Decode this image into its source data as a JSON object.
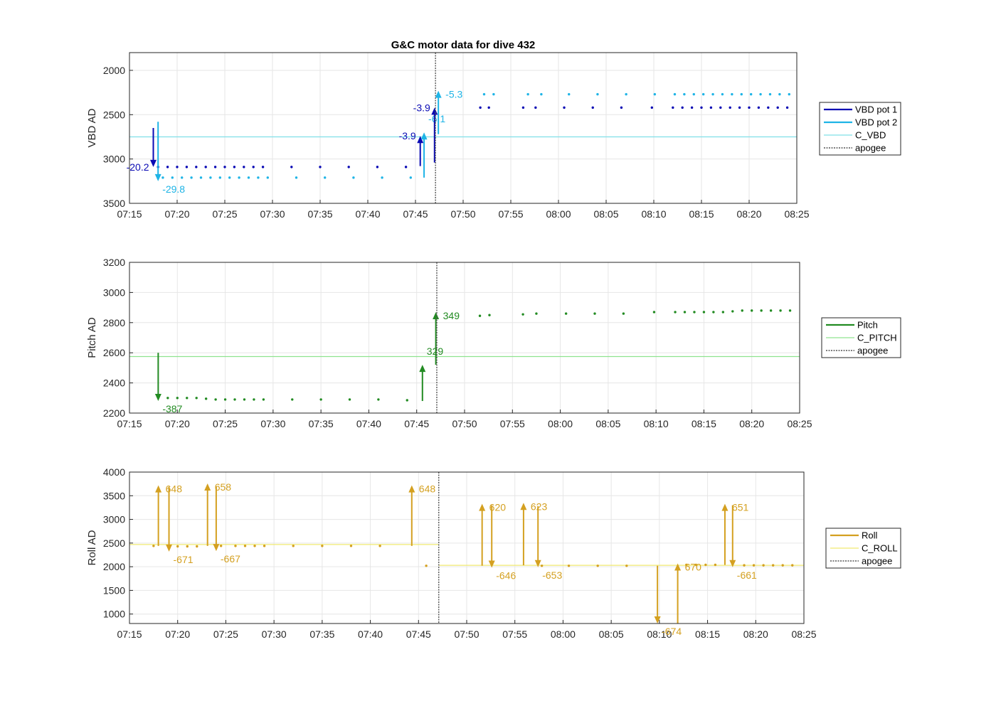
{
  "title": "G&C motor data for dive 432",
  "colors": {
    "vbd1": "#0a0ab4",
    "vbd2": "#1eb4e6",
    "c_vbd": "#7fe0e8",
    "pitch": "#228b22",
    "c_pitch": "#8fe38f",
    "roll": "#d4a020",
    "c_roll": "#f0ea70",
    "apogee": "#555555",
    "grid": "#e6e6e6"
  },
  "chart_data": [
    {
      "type": "scatter",
      "ylabel": "VBD AD",
      "ylim": [
        3500,
        1800
      ],
      "yreverse": true,
      "yticks": [
        2000,
        2500,
        3000,
        3500
      ],
      "xlim_minutes": [
        435,
        505
      ],
      "xticks": [
        "07:15",
        "07:20",
        "07:25",
        "07:30",
        "07:35",
        "07:40",
        "07:45",
        "07:50",
        "07:55",
        "08:00",
        "08:05",
        "08:10",
        "08:15",
        "08:20",
        "08:25"
      ],
      "apogee_minutes": 467.1,
      "hlines": [
        {
          "name": "C_VBD",
          "y": 2750,
          "color": "#7fe0e8"
        }
      ],
      "series": [
        {
          "name": "VBD pot 1",
          "color": "#0a0ab4",
          "x": [
            438,
            439,
            440,
            441,
            442,
            443,
            444,
            445,
            446,
            447,
            448,
            449,
            452,
            455,
            458,
            461,
            464,
            471.8,
            472.7,
            476.3,
            477.6,
            480.6,
            483.6,
            486.6,
            489.8,
            492,
            493,
            494,
            495,
            496,
            497,
            498,
            499,
            500,
            501,
            502,
            503,
            504
          ],
          "y": [
            3090,
            3090,
            3090,
            3090,
            3090,
            3090,
            3090,
            3090,
            3090,
            3090,
            3090,
            3090,
            3090,
            3090,
            3090,
            3090,
            3090,
            2420,
            2420,
            2420,
            2420,
            2420,
            2420,
            2420,
            2420,
            2420,
            2420,
            2420,
            2420,
            2420,
            2420,
            2420,
            2420,
            2420,
            2420,
            2420,
            2420,
            2420
          ]
        },
        {
          "name": "VBD pot 2",
          "color": "#1eb4e6",
          "x": [
            438.5,
            439.5,
            440.5,
            441.5,
            442.5,
            443.5,
            444.5,
            445.5,
            446.5,
            447.5,
            448.5,
            449.5,
            452.5,
            455.5,
            458.5,
            461.5,
            464.5,
            472.2,
            473.2,
            476.8,
            478.2,
            481.1,
            484.1,
            487.1,
            490.1,
            492.2,
            493.2,
            494.2,
            495.2,
            496.2,
            497.2,
            498.2,
            499.2,
            500.2,
            501.2,
            502.2,
            503.2,
            504.2
          ],
          "y": [
            3210,
            3210,
            3210,
            3210,
            3210,
            3210,
            3210,
            3210,
            3210,
            3210,
            3210,
            3210,
            3210,
            3210,
            3210,
            3210,
            3210,
            2270,
            2270,
            2270,
            2270,
            2270,
            2270,
            2270,
            2270,
            2270,
            2270,
            2270,
            2270,
            2270,
            2270,
            2270,
            2270,
            2270,
            2270,
            2270,
            2270,
            2270
          ]
        }
      ],
      "arrows": [
        {
          "x": 437.5,
          "y_from": 2650,
          "y_to": 3090,
          "label": "-20.2",
          "color": "#0a0ab4",
          "label_side": "left"
        },
        {
          "x": 438.0,
          "y_from": 2580,
          "y_to": 3250,
          "label": "-29.8",
          "color": "#1eb4e6",
          "label_side": "below"
        },
        {
          "x": 465.5,
          "y_from": 3080,
          "y_to": 2740,
          "label": "-3.9",
          "color": "#0a0ab4",
          "label_side": "left"
        },
        {
          "x": 465.9,
          "y_from": 3210,
          "y_to": 2700,
          "label": "-6.1",
          "color": "#1eb4e6",
          "label_side": "below"
        },
        {
          "x": 467.0,
          "y_from": 3040,
          "y_to": 2420,
          "label": "-3.9",
          "color": "#0a0ab4",
          "label_side": "left"
        },
        {
          "x": 467.4,
          "y_from": 2720,
          "y_to": 2230,
          "label": "-5.3",
          "color": "#1eb4e6",
          "label_side": "right"
        }
      ],
      "legend": {
        "placement": "right",
        "entries": [
          {
            "label": "VBD pot 1",
            "color": "#0a0ab4",
            "style": "thick"
          },
          {
            "label": "VBD pot 2",
            "color": "#1eb4e6",
            "style": "thick"
          },
          {
            "label": "C_VBD",
            "color": "#7fe0e8",
            "style": "thin"
          },
          {
            "label": "apogee",
            "color": "#555555",
            "style": "dotted"
          }
        ]
      }
    },
    {
      "type": "scatter",
      "ylabel": "Pitch AD",
      "ylim": [
        2200,
        3200
      ],
      "yreverse": false,
      "yticks": [
        2200,
        2400,
        2600,
        2800,
        3000,
        3200
      ],
      "xlim_minutes": [
        435,
        505
      ],
      "xticks": [
        "07:15",
        "07:20",
        "07:25",
        "07:30",
        "07:35",
        "07:40",
        "07:45",
        "07:50",
        "07:55",
        "08:00",
        "08:05",
        "08:10",
        "08:15",
        "08:20",
        "08:25"
      ],
      "apogee_minutes": 467.1,
      "hlines": [
        {
          "name": "C_PITCH",
          "y": 2575,
          "color": "#8fe38f"
        }
      ],
      "series": [
        {
          "name": "Pitch",
          "color": "#228b22",
          "x": [
            439,
            440,
            441,
            442,
            443,
            444,
            445,
            446,
            447,
            448,
            449,
            452,
            455,
            458,
            461,
            464,
            471.6,
            472.6,
            476.1,
            477.5,
            480.6,
            483.6,
            486.6,
            489.8,
            492,
            493,
            494,
            495,
            496,
            497,
            498,
            499,
            500,
            501,
            502,
            503,
            504
          ],
          "y": [
            2300,
            2300,
            2300,
            2300,
            2295,
            2290,
            2290,
            2290,
            2290,
            2290,
            2290,
            2290,
            2290,
            2290,
            2290,
            2285,
            2845,
            2850,
            2855,
            2860,
            2860,
            2860,
            2860,
            2870,
            2870,
            2870,
            2870,
            2870,
            2870,
            2870,
            2875,
            2880,
            2880,
            2880,
            2880,
            2880,
            2880
          ]
        }
      ],
      "arrows": [
        {
          "x": 438.0,
          "y_from": 2600,
          "y_to": 2280,
          "label": "-387",
          "color": "#228b22",
          "label_side": "below"
        },
        {
          "x": 465.6,
          "y_from": 2280,
          "y_to": 2520,
          "label": "329",
          "color": "#228b22",
          "label_side": "below"
        },
        {
          "x": 467.0,
          "y_from": 2520,
          "y_to": 2870,
          "label": "349",
          "color": "#228b22",
          "label_side": "right"
        }
      ],
      "legend": {
        "placement": "right",
        "entries": [
          {
            "label": "Pitch",
            "color": "#228b22",
            "style": "thick"
          },
          {
            "label": "C_PITCH",
            "color": "#8fe38f",
            "style": "thin"
          },
          {
            "label": "apogee",
            "color": "#555555",
            "style": "dotted"
          }
        ]
      }
    },
    {
      "type": "scatter",
      "ylabel": "Roll AD",
      "ylim": [
        800,
        4000
      ],
      "yreverse": false,
      "yticks": [
        1000,
        1500,
        2000,
        2500,
        3000,
        3500,
        4000
      ],
      "xlim_minutes": [
        435,
        505
      ],
      "xticks": [
        "07:15",
        "07:20",
        "07:25",
        "07:30",
        "07:35",
        "07:40",
        "07:45",
        "07:50",
        "07:55",
        "08:00",
        "08:05",
        "08:10",
        "08:15",
        "08:20",
        "08:25"
      ],
      "apogee_minutes": 467.1,
      "hlines": [
        {
          "name": "C_ROLL",
          "y": 2470,
          "color": "#f0ea70",
          "x_end": 467.1
        },
        {
          "name": "C_ROLL",
          "y": 2030,
          "color": "#f0ea70",
          "x_start": 467.1
        }
      ],
      "series": [
        {
          "name": "Roll",
          "color": "#d4a020",
          "x": [
            437.5,
            440,
            441,
            442,
            444.5,
            446,
            447,
            448,
            449,
            452,
            455,
            458,
            461,
            465.8,
            477.8,
            480.6,
            483.6,
            486.6,
            492.8,
            493.8,
            494.8,
            495.8,
            498.8,
            499.8,
            500.8,
            501.8,
            502.8,
            503.8
          ],
          "y": [
            2440,
            2430,
            2430,
            2430,
            2440,
            2440,
            2440,
            2440,
            2440,
            2440,
            2440,
            2440,
            2440,
            2020,
            2020,
            2020,
            2020,
            2020,
            2040,
            2040,
            2040,
            2040,
            2030,
            2030,
            2030,
            2030,
            2030,
            2030
          ]
        }
      ],
      "arrows": [
        {
          "x": 438.0,
          "y_from": 2440,
          "y_to": 3720,
          "label": "648",
          "color": "#d4a020",
          "label_side": "right"
        },
        {
          "x": 439.1,
          "y_from": 3690,
          "y_to": 2320,
          "label": "-671",
          "color": "#d4a020",
          "label_side": "below"
        },
        {
          "x": 443.1,
          "y_from": 2440,
          "y_to": 3760,
          "label": "658",
          "color": "#d4a020",
          "label_side": "right"
        },
        {
          "x": 444.0,
          "y_from": 3700,
          "y_to": 2330,
          "label": "-667",
          "color": "#d4a020",
          "label_side": "below"
        },
        {
          "x": 464.3,
          "y_from": 2440,
          "y_to": 3720,
          "label": "648",
          "color": "#d4a020",
          "label_side": "right"
        },
        {
          "x": 471.6,
          "y_from": 2020,
          "y_to": 3330,
          "label": "620",
          "color": "#d4a020",
          "label_side": "right"
        },
        {
          "x": 472.6,
          "y_from": 3300,
          "y_to": 1980,
          "label": "-646",
          "color": "#d4a020",
          "label_side": "below"
        },
        {
          "x": 475.9,
          "y_from": 2030,
          "y_to": 3350,
          "label": "623",
          "color": "#d4a020",
          "label_side": "right"
        },
        {
          "x": 477.4,
          "y_from": 3280,
          "y_to": 1990,
          "label": "-653",
          "color": "#d4a020",
          "label_side": "below"
        },
        {
          "x": 489.8,
          "y_from": 2020,
          "y_to": 800,
          "label": "-674",
          "color": "#d4a020",
          "label_side": "below"
        },
        {
          "x": 491.9,
          "y_from": 800,
          "y_to": 2070,
          "label": "670",
          "color": "#d4a020",
          "label_side": "right"
        },
        {
          "x": 496.8,
          "y_from": 2040,
          "y_to": 3330,
          "label": "651",
          "color": "#d4a020",
          "label_side": "right"
        },
        {
          "x": 497.6,
          "y_from": 3300,
          "y_to": 1990,
          "label": "-661",
          "color": "#d4a020",
          "label_side": "below"
        }
      ],
      "legend": {
        "placement": "right",
        "entries": [
          {
            "label": "Roll",
            "color": "#d4a020",
            "style": "thick"
          },
          {
            "label": "C_ROLL",
            "color": "#f0ea70",
            "style": "thin"
          },
          {
            "label": "apogee",
            "color": "#555555",
            "style": "dotted"
          }
        ]
      }
    }
  ]
}
